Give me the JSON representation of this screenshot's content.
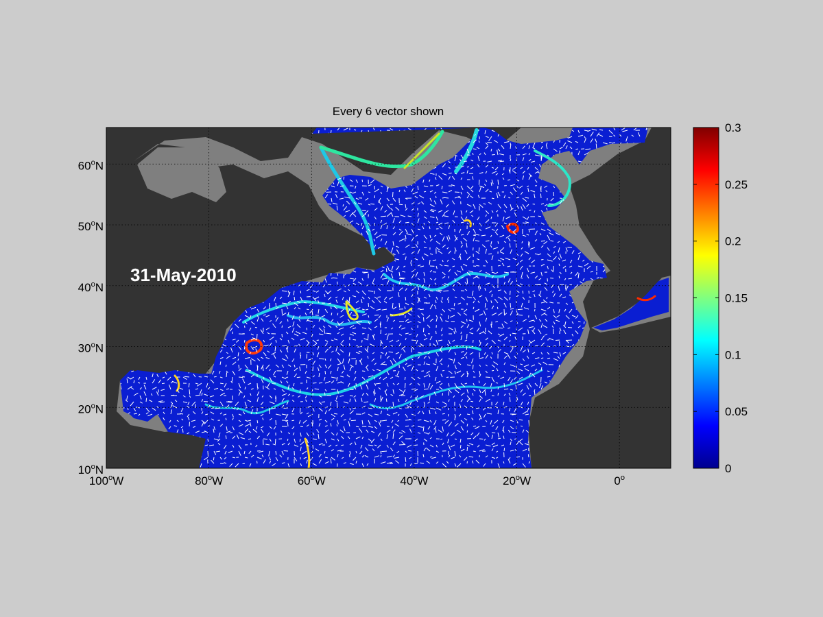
{
  "figure": {
    "title": "Every 6 vector shown",
    "date_label": "31-May-2010"
  },
  "map": {
    "lon_range": [
      -100,
      10
    ],
    "lat_range": [
      10,
      66
    ],
    "lon_ticks": [
      {
        "value": -100,
        "num": "100",
        "sup": "o",
        "hem": "W"
      },
      {
        "value": -80,
        "num": "80",
        "sup": "o",
        "hem": "W"
      },
      {
        "value": -60,
        "num": "60",
        "sup": "o",
        "hem": "W"
      },
      {
        "value": -40,
        "num": "40",
        "sup": "o",
        "hem": "W"
      },
      {
        "value": -20,
        "num": "20",
        "sup": "o",
        "hem": "W"
      },
      {
        "value": 0,
        "num": "0",
        "sup": "o",
        "hem": ""
      }
    ],
    "lat_ticks": [
      {
        "value": 10,
        "num": "10",
        "sup": "o",
        "hem": "N"
      },
      {
        "value": 20,
        "num": "20",
        "sup": "o",
        "hem": "N"
      },
      {
        "value": 30,
        "num": "30",
        "sup": "o",
        "hem": "N"
      },
      {
        "value": 40,
        "num": "40",
        "sup": "o",
        "hem": "N"
      },
      {
        "value": 50,
        "num": "50",
        "sup": "o",
        "hem": "N"
      },
      {
        "value": 60,
        "num": "60",
        "sup": "o",
        "hem": "N"
      }
    ],
    "grid": true,
    "colors": {
      "land": "#333333",
      "shelf": "#7f7f7f",
      "ocean": "#0a1ed2",
      "vector": "#ffffff"
    }
  },
  "colorbar": {
    "range": [
      0,
      0.3
    ],
    "ticks": [
      "0",
      "0.05",
      "0.1",
      "0.15",
      "0.2",
      "0.25",
      "0.3"
    ],
    "colormap": "jet"
  },
  "chart_data": {
    "type": "heatmap",
    "title": "Every 6 vector shown",
    "annotation": "31-May-2010",
    "x_range_deg_lon": [
      -100,
      10
    ],
    "y_range_deg_lat": [
      10,
      66
    ],
    "color_range": [
      0,
      0.3
    ],
    "colorbar_ticks": [
      0,
      0.05,
      0.1,
      0.15,
      0.2,
      0.25,
      0.3
    ],
    "grid": true
  }
}
